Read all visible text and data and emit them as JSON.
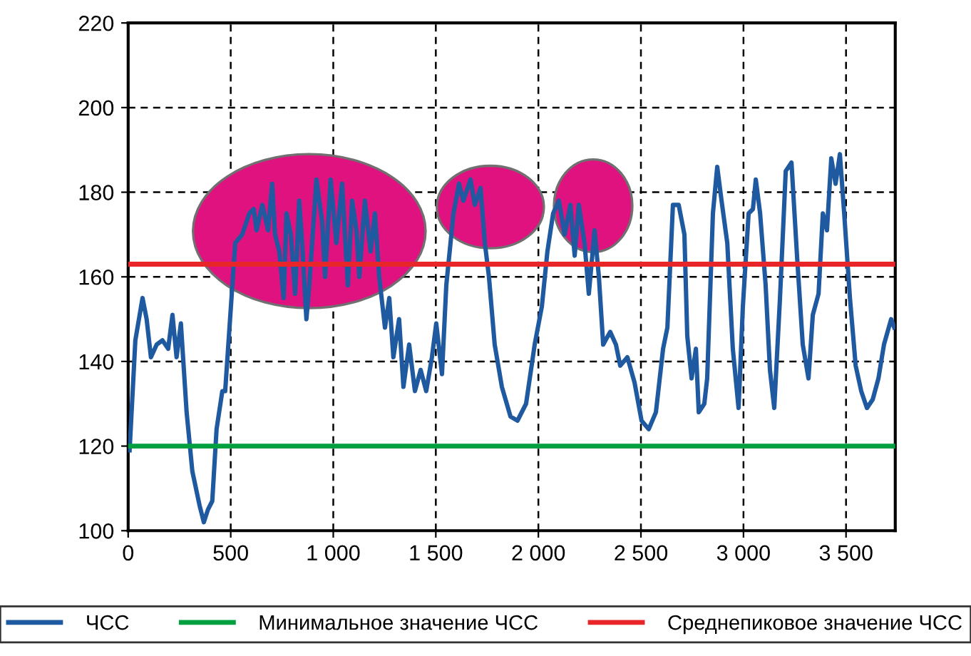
{
  "chart_data": {
    "type": "line",
    "xlim": [
      0,
      3740
    ],
    "ylim": [
      100,
      220
    ],
    "xticks": [
      0,
      500,
      {
        "value": 1000,
        "label": "1 000"
      },
      {
        "value": 1500,
        "label": "1 500"
      },
      {
        "value": 2000,
        "label": "2 000"
      },
      {
        "value": 2500,
        "label": "2 500"
      },
      {
        "value": 3000,
        "label": "3 000"
      },
      {
        "value": 3500,
        "label": "3 500"
      }
    ],
    "yticks": [
      100,
      120,
      140,
      160,
      180,
      200,
      220
    ],
    "grid": true,
    "legend": "bottom",
    "line_style": "solid",
    "series": [
      {
        "name": "ЧСС",
        "color": "#1f5aa0",
        "x": [
          7,
          35,
          70,
          90,
          111,
          139,
          167,
          195,
          216,
          236,
          257,
          285,
          313,
          348,
          369,
          389,
          410,
          431,
          459,
          473,
          501,
          522,
          556,
          591,
          612,
          626,
          654,
          682,
          702,
          716,
          737,
          758,
          772,
          793,
          814,
          834,
          848,
          869,
          883,
          918,
          946,
          960,
          987,
          1015,
          1043,
          1071,
          1092,
          1113,
          1127,
          1154,
          1182,
          1203,
          1224,
          1252,
          1273,
          1293,
          1321,
          1342,
          1370,
          1398,
          1426,
          1453,
          1481,
          1502,
          1530,
          1551,
          1586,
          1613,
          1634,
          1669,
          1690,
          1718,
          1739,
          1759,
          1787,
          1822,
          1864,
          1898,
          1940,
          1982,
          2017,
          2044,
          2072,
          2100,
          2128,
          2156,
          2177,
          2197,
          2225,
          2246,
          2274,
          2295,
          2316,
          2350,
          2378,
          2399,
          2434,
          2469,
          2503,
          2538,
          2573,
          2608,
          2629,
          2656,
          2684,
          2712,
          2726,
          2747,
          2768,
          2782,
          2809,
          2823,
          2851,
          2872,
          2893,
          2921,
          2948,
          2976,
          2997,
          3025,
          3046,
          3060,
          3081,
          3108,
          3129,
          3150,
          3178,
          3206,
          3234,
          3261,
          3289,
          3317,
          3338,
          3366,
          3387,
          3407,
          3428,
          3449,
          3470,
          3491,
          3519,
          3547,
          3574,
          3602,
          3630,
          3658,
          3685,
          3720,
          3735
        ],
        "values": [
          119,
          145,
          155,
          150,
          141,
          144,
          145,
          143,
          151,
          141,
          149,
          128,
          114,
          106,
          102,
          105,
          107,
          124,
          133,
          133,
          153,
          168,
          170,
          175,
          176,
          171,
          177,
          171,
          182,
          170,
          166,
          155,
          175,
          170,
          156,
          178,
          168,
          150,
          158,
          183,
          173,
          160,
          183,
          168,
          182,
          158,
          178,
          171,
          160,
          178,
          166,
          175,
          160,
          148,
          155,
          141,
          150,
          134,
          144,
          133,
          138,
          133,
          141,
          149,
          137,
          158,
          175,
          182,
          178,
          183,
          177,
          181,
          168,
          160,
          144,
          134,
          127,
          126,
          130,
          144,
          153,
          166,
          175,
          178,
          170,
          177,
          165,
          177,
          168,
          156,
          171,
          160,
          144,
          147,
          144,
          139,
          141,
          135,
          126,
          124,
          128,
          143,
          148,
          177,
          177,
          170,
          146,
          136,
          143,
          128,
          130,
          136,
          175,
          186,
          178,
          168,
          143,
          129,
          153,
          175,
          176,
          183,
          175,
          158,
          138,
          129,
          155,
          185,
          187,
          165,
          144,
          136,
          151,
          156,
          175,
          171,
          188,
          182,
          189,
          175,
          155,
          139,
          133,
          129,
          131,
          136,
          144,
          150,
          148
        ]
      }
    ],
    "ref_lines": [
      {
        "axis": "y",
        "value": 120,
        "label": "Минимальное значение ЧСС",
        "color": "#00a040"
      },
      {
        "axis": "y",
        "value": 163,
        "label": "Среднепиковое значение ЧСС",
        "color": "#e8262a"
      }
    ]
  }
}
